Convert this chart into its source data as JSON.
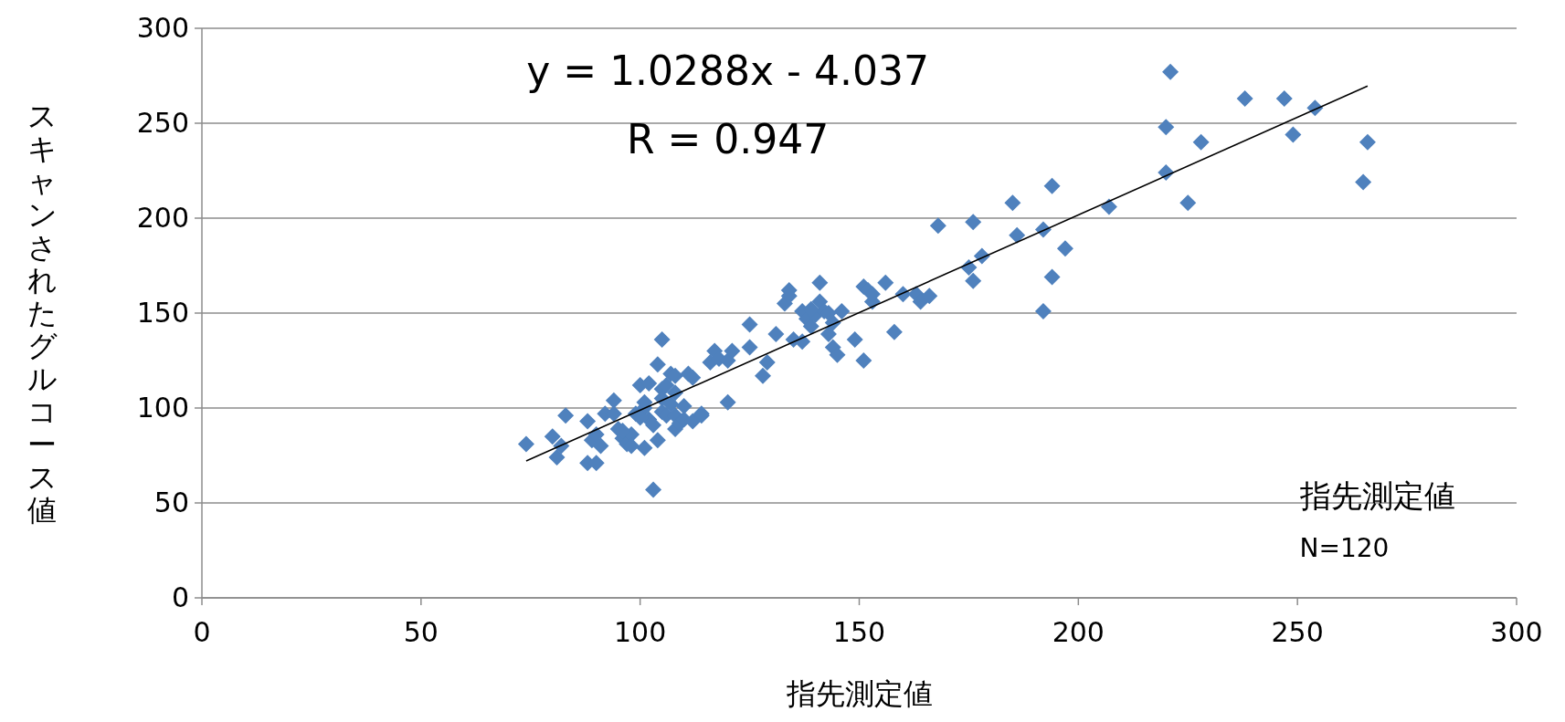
{
  "chart_data": {
    "type": "scatter",
    "xlabel": "指先測定値",
    "ylabel": "スキャンされたグルコース値",
    "xlim": [
      0,
      300
    ],
    "xticks": [
      0,
      50,
      100,
      150,
      200,
      250,
      300
    ],
    "ylim": [
      0,
      300
    ],
    "yticks": [
      0,
      50,
      100,
      150,
      200,
      250,
      300
    ],
    "grid": "y",
    "marker": "diamond",
    "annotations": [
      "y = 1.0288x - 4.037",
      "R = 0.947",
      "指先測定値",
      "N=120"
    ],
    "series": [
      {
        "color": "#4f81bd",
        "x": [
          74,
          80,
          81,
          83,
          82,
          88,
          88,
          90,
          89,
          90,
          91,
          92,
          94,
          94,
          95,
          96,
          97,
          98,
          98,
          99,
          100,
          101,
          101,
          101,
          102,
          102,
          103,
          103,
          104,
          104,
          105,
          105,
          105,
          105,
          106,
          107,
          107,
          108,
          108,
          108,
          108,
          109,
          110,
          111,
          112,
          112,
          114,
          114,
          116,
          117,
          118,
          120,
          121,
          120,
          125,
          125,
          128,
          129,
          131,
          133,
          134,
          134,
          135,
          137,
          137,
          138,
          139,
          140,
          141,
          141,
          142,
          143,
          144,
          144,
          145,
          146,
          149,
          151,
          151,
          152,
          153,
          153,
          156,
          158,
          160,
          163,
          164,
          166,
          168,
          175,
          176,
          176,
          178,
          185,
          186,
          192,
          192,
          194,
          194,
          197,
          207,
          220,
          220,
          221,
          225,
          228,
          238,
          247,
          249,
          254,
          265,
          266,
          96,
          100,
          106,
          139,
          143,
          110
        ],
        "values": [
          81,
          85,
          74,
          96,
          80,
          93,
          71,
          71,
          83,
          86,
          80,
          97,
          104,
          97,
          89,
          84,
          81,
          86,
          80,
          97,
          112,
          100,
          79,
          103,
          113,
          94,
          91,
          57,
          83,
          123,
          136,
          110,
          105,
          98,
          96,
          102,
          118,
          117,
          108,
          96,
          89,
          92,
          94,
          118,
          116,
          93,
          96,
          97,
          124,
          130,
          126,
          125,
          130,
          103,
          144,
          132,
          117,
          124,
          139,
          155,
          162,
          159,
          136,
          135,
          151,
          147,
          143,
          149,
          166,
          156,
          151,
          139,
          132,
          145,
          128,
          151,
          136,
          125,
          164,
          162,
          156,
          160,
          166,
          140,
          160,
          160,
          156,
          159,
          196,
          174,
          167,
          198,
          180,
          208,
          191,
          194,
          151,
          217,
          169,
          184,
          206,
          248,
          224,
          277,
          208,
          240,
          263,
          263,
          244,
          258,
          219,
          240,
          88,
          95,
          112,
          152,
          150,
          101
        ]
      },
      {
        "type": "line",
        "color": "#000000",
        "marker": "none",
        "x": [
          74,
          266
        ],
        "values": [
          72.1,
          269.6
        ]
      }
    ]
  }
}
